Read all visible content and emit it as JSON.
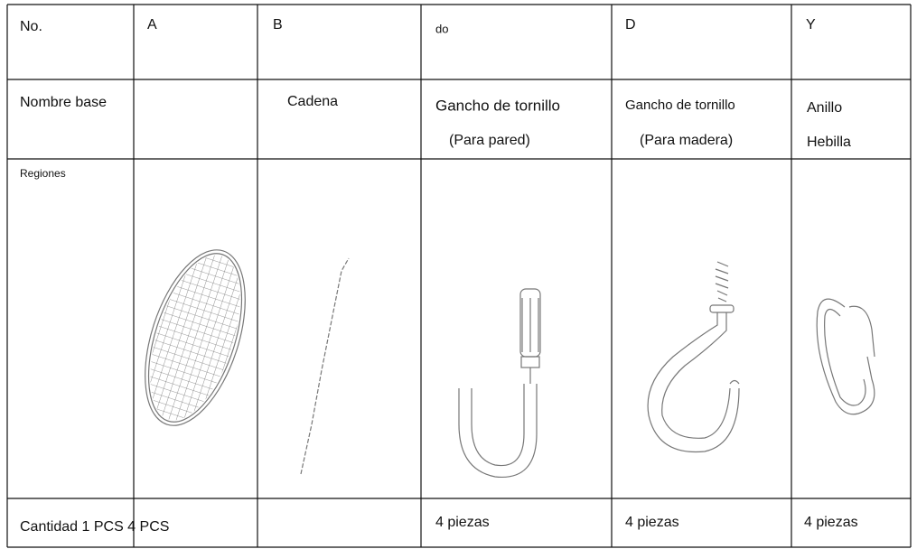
{
  "table": {
    "rows": [
      [
        "No.",
        "A",
        "B",
        "do",
        "D",
        "Y"
      ],
      [
        "Nombre base",
        null,
        "Cadena",
        [
          "Gancho de tornillo",
          "(Para pared)"
        ],
        [
          "Gancho de tornillo",
          "(Para madera)"
        ],
        [
          "Anillo",
          "Hebilla"
        ]
      ],
      [
        "Regiones",
        null,
        null,
        null,
        null,
        null
      ],
      [
        "Cantidad 1 PCS 4 PCS",
        null,
        null,
        "4 piezas",
        "4 piezas",
        "4 piezas"
      ]
    ]
  }
}
